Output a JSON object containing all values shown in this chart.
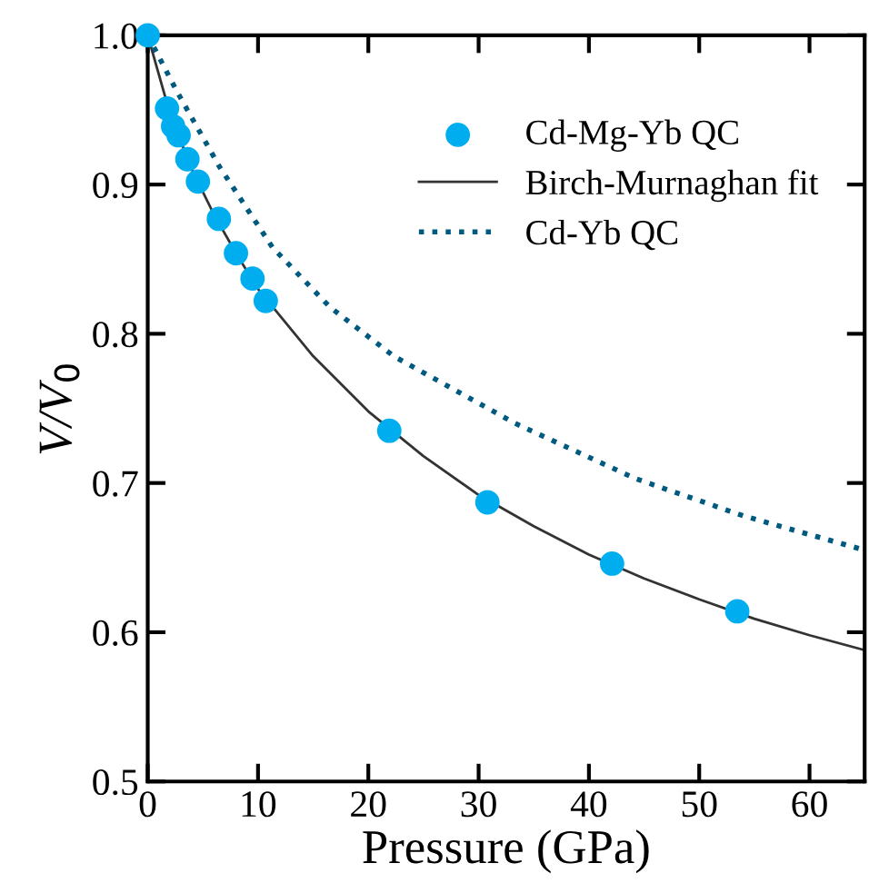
{
  "chart_data": {
    "type": "scatter",
    "xlabel": "Pressure (GPa)",
    "ylabel": "V/V$_{0}$",
    "xlim": [
      0,
      65
    ],
    "ylim": [
      0.5,
      1.0
    ],
    "xticks": [
      0,
      10,
      20,
      30,
      40,
      50,
      60
    ],
    "yticks": [
      {
        "value": 0.5,
        "label": "0.5"
      },
      {
        "value": 0.6,
        "label": "0.6"
      },
      {
        "value": 0.7,
        "label": "0.7"
      },
      {
        "value": 0.8,
        "label": "0.8"
      },
      {
        "value": 0.9,
        "label": "0.9"
      },
      {
        "value": 1.0,
        "label": "1.0"
      }
    ],
    "grid": false,
    "legend": "top right",
    "series": [
      {
        "name": "Cd-Mg-Yb QC",
        "marker": "circle",
        "color": "#00aeef",
        "x": [
          0,
          1.75,
          2.3,
          2.8,
          3.6,
          4.55,
          6.45,
          8.0,
          9.5,
          10.7,
          21.9,
          30.8,
          42.1,
          53.45
        ],
        "values": [
          1.0,
          0.951,
          0.939,
          0.933,
          0.917,
          0.902,
          0.877,
          0.854,
          0.837,
          0.822,
          0.735,
          0.687,
          0.646,
          0.614
        ]
      },
      {
        "name": "Birch-Murnaghan fit",
        "type": "line",
        "line_style": "solid",
        "color": "#333333",
        "x": [
          0,
          2,
          4,
          6,
          8,
          10,
          15,
          20,
          25,
          30,
          35,
          40,
          45,
          50,
          55,
          60,
          65
        ],
        "values": [
          1.0,
          0.948,
          0.91,
          0.88,
          0.854,
          0.83,
          0.785,
          0.748,
          0.718,
          0.692,
          0.671,
          0.652,
          0.636,
          0.622,
          0.609,
          0.598,
          0.588
        ]
      },
      {
        "name": "Cd-Yb QC",
        "type": "line",
        "line_style": "dotted",
        "color": "#005a80",
        "x": [
          0,
          2.6,
          6.5,
          11.3,
          16.5,
          22.3,
          33.3,
          44.2,
          54,
          65
        ],
        "values": [
          1.0,
          0.963,
          0.912,
          0.858,
          0.818,
          0.785,
          0.74,
          0.703,
          0.678,
          0.655
        ]
      }
    ]
  }
}
